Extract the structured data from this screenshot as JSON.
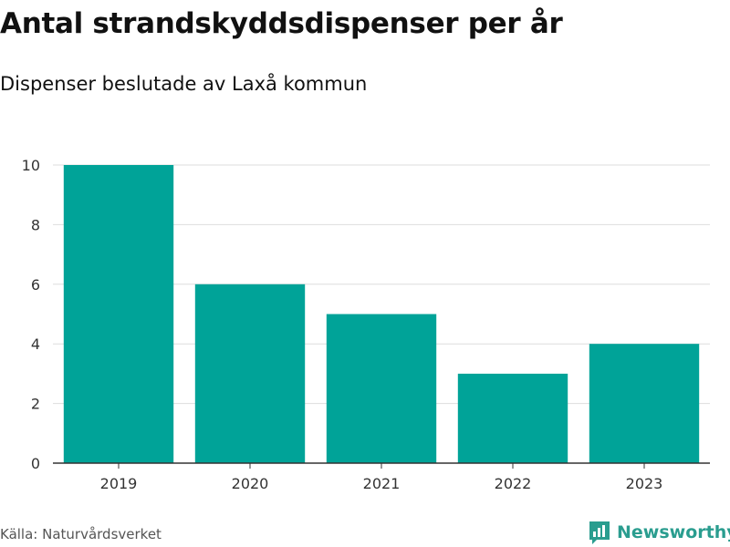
{
  "header": {
    "title": "Antal strandskyddsdispenser per år",
    "subtitle": "Dispenser beslutade av Laxå kommun"
  },
  "footer": {
    "source": "Källa: Naturvårdsverket",
    "brand": "Newsworthy"
  },
  "colors": {
    "bar": "#00a398",
    "grid": "#dddddd",
    "axis": "#333333",
    "brand": "#2a9d8f"
  },
  "chart_data": {
    "type": "bar",
    "title": "Antal strandskyddsdispenser per år",
    "subtitle": "Dispenser beslutade av Laxå kommun",
    "categories": [
      "2019",
      "2020",
      "2021",
      "2022",
      "2023"
    ],
    "values": [
      10,
      6,
      5,
      3,
      4
    ],
    "yticks": [
      0,
      2,
      4,
      6,
      8,
      10
    ],
    "ylim": [
      0,
      10
    ],
    "xlabel": "",
    "ylabel": "",
    "grid": true,
    "legend": "none"
  }
}
